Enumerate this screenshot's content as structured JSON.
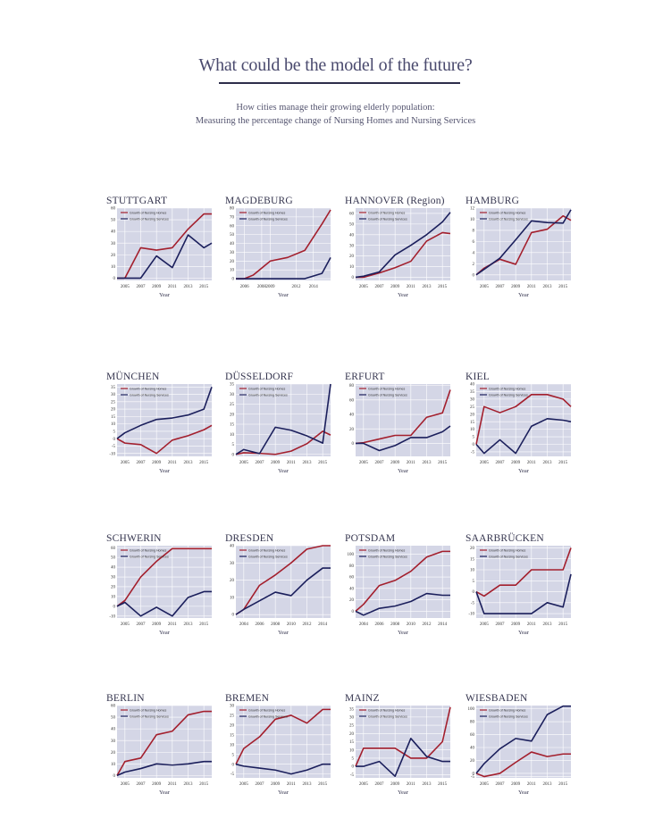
{
  "header": {
    "title": "What could be the model of the future?",
    "subtitle_line1": "How cities manage their growing elderly population:",
    "subtitle_line2": "Measuring the percentage change of Nursing Homes and Nursing Services"
  },
  "colors": {
    "homes": "#a31f2d",
    "services": "#1b1f5c",
    "plot_bg": "#d4d6e6",
    "grid": "#ffffff"
  },
  "chart_data": [
    {
      "type": "line",
      "title": "STUTTGART",
      "xlabel": "Year",
      "ylim": [
        -2,
        60
      ],
      "yticks": [
        0,
        10,
        20,
        30,
        40,
        50,
        60
      ],
      "xticks": [
        "2005",
        "2007",
        "2009",
        "2011",
        "2013",
        "2015"
      ],
      "x": [
        2004,
        2005,
        2007,
        2009,
        2011,
        2013,
        2015,
        2016
      ],
      "series": [
        {
          "name": "Growth of Nursing Homes",
          "values": [
            0,
            0,
            26,
            24,
            26,
            42,
            55,
            55
          ]
        },
        {
          "name": "Growth of Nursing Services",
          "values": [
            0,
            0,
            0,
            19,
            9,
            37,
            26,
            30
          ]
        }
      ]
    },
    {
      "type": "line",
      "title": "MAGDEBURG",
      "xlabel": "Year",
      "ylim": [
        -2,
        80
      ],
      "yticks": [
        0,
        10,
        20,
        30,
        40,
        50,
        60,
        70,
        80
      ],
      "xticks": [
        "2006",
        "2008",
        "2009",
        "2012",
        "2014"
      ],
      "x": [
        2005,
        2006,
        2007,
        2009,
        2011,
        2013,
        2015,
        2016
      ],
      "series": [
        {
          "name": "Growth of Nursing Homes",
          "values": [
            0,
            0,
            4,
            20,
            24,
            32,
            62,
            78
          ]
        },
        {
          "name": "Growth of Nursing Services",
          "values": [
            0,
            0,
            0,
            0,
            0,
            0,
            6,
            24
          ]
        }
      ]
    },
    {
      "type": "line",
      "title": "HANNOVER (Region)",
      "xlabel": "Year",
      "ylim": [
        -3,
        65
      ],
      "yticks": [
        0,
        10,
        20,
        30,
        40,
        50,
        60
      ],
      "xticks": [
        "2005",
        "2007",
        "2009",
        "2011",
        "2013",
        "2015"
      ],
      "x": [
        2004,
        2005,
        2007,
        2009,
        2011,
        2013,
        2015,
        2016
      ],
      "series": [
        {
          "name": "Growth of Nursing Homes",
          "values": [
            0,
            0,
            4,
            9,
            15,
            34,
            42,
            41
          ]
        },
        {
          "name": "Growth of Nursing Services",
          "values": [
            0,
            1,
            5,
            21,
            30,
            40,
            52,
            61
          ]
        }
      ]
    },
    {
      "type": "line",
      "title": "HAMBURG",
      "xlabel": "Year",
      "ylim": [
        -1,
        12
      ],
      "yticks": [
        0,
        2,
        4,
        6,
        8,
        10,
        12
      ],
      "xticks": [
        "2005",
        "2007",
        "2009",
        "2011",
        "2013",
        "2015"
      ],
      "x": [
        2004,
        2005,
        2007,
        2009,
        2011,
        2013,
        2015,
        2016
      ],
      "series": [
        {
          "name": "Growth of Nursing Homes",
          "values": [
            0,
            1.2,
            2.8,
            1.9,
            7.6,
            8.2,
            10.6,
            9.8
          ]
        },
        {
          "name": "Growth of Nursing Services",
          "values": [
            0,
            1.0,
            3.0,
            6.3,
            9.7,
            9.4,
            9.3,
            11.7
          ]
        }
      ]
    },
    {
      "type": "line",
      "title": "MÜNCHEN",
      "xlabel": "Year",
      "ylim": [
        -12,
        37
      ],
      "yticks": [
        -10,
        -5,
        0,
        5,
        10,
        15,
        20,
        25,
        30,
        35
      ],
      "xticks": [
        "2005",
        "2007",
        "2009",
        "2011",
        "2013",
        "2015"
      ],
      "x": [
        2004,
        2005,
        2007,
        2009,
        2011,
        2013,
        2015,
        2016
      ],
      "series": [
        {
          "name": "Growth of Nursing Homes",
          "values": [
            0,
            -3,
            -4,
            -10,
            -1,
            2,
            6,
            9
          ]
        },
        {
          "name": "Growth of Nursing Services",
          "values": [
            0,
            4,
            9,
            13,
            14,
            16,
            20,
            35
          ]
        }
      ]
    },
    {
      "type": "line",
      "title": "DÜSSELDORF",
      "xlabel": "Year",
      "ylim": [
        -1,
        35
      ],
      "yticks": [
        0,
        5,
        10,
        15,
        20,
        25,
        30,
        35
      ],
      "xticks": [
        "2005",
        "2007",
        "2009",
        "2011",
        "2013",
        "2015"
      ],
      "x": [
        2004,
        2005,
        2007,
        2009,
        2011,
        2013,
        2015,
        2016
      ],
      "series": [
        {
          "name": "Growth of Nursing Homes",
          "values": [
            0,
            0.8,
            0.5,
            0,
            1.6,
            5.3,
            11.5,
            9.6
          ]
        },
        {
          "name": "Growth of Nursing Services",
          "values": [
            0,
            2.4,
            0.4,
            13.5,
            12,
            9.2,
            5.6,
            35
          ]
        }
      ]
    },
    {
      "type": "line",
      "title": "ERFURT",
      "xlabel": "Year",
      "ylim": [
        -18,
        82
      ],
      "yticks": [
        0,
        20,
        40,
        60,
        80
      ],
      "xticks": [
        "2005",
        "2007",
        "2009",
        "2011",
        "2013",
        "2015"
      ],
      "x": [
        2004,
        2005,
        2007,
        2009,
        2011,
        2013,
        2015,
        2016
      ],
      "series": [
        {
          "name": "Growth of Nursing Homes",
          "values": [
            0,
            1,
            6,
            11,
            11,
            36,
            42,
            74
          ]
        },
        {
          "name": "Growth of Nursing Services",
          "values": [
            0,
            0,
            -10,
            -3,
            8,
            8,
            16,
            24
          ]
        }
      ]
    },
    {
      "type": "line",
      "title": "KIEL",
      "xlabel": "Year",
      "ylim": [
        -8,
        40
      ],
      "yticks": [
        -5,
        0,
        5,
        10,
        15,
        20,
        25,
        30,
        35,
        40
      ],
      "xticks": [
        "2005",
        "2007",
        "2009",
        "2011",
        "2013",
        "2015"
      ],
      "x": [
        2004,
        2005,
        2007,
        2009,
        2011,
        2013,
        2015,
        2016
      ],
      "series": [
        {
          "name": "Growth of Nursing Homes",
          "values": [
            0,
            25,
            21,
            25,
            33,
            33,
            30,
            25
          ]
        },
        {
          "name": "Growth of Nursing Services",
          "values": [
            0,
            -6,
            3,
            -6,
            12,
            17,
            16,
            15
          ]
        }
      ]
    },
    {
      "type": "line",
      "title": "SCHWERIN",
      "xlabel": "Year",
      "ylim": [
        -12,
        62
      ],
      "yticks": [
        -10,
        0,
        10,
        20,
        30,
        40,
        50,
        60
      ],
      "xticks": [
        "2005",
        "2007",
        "2009",
        "2011",
        "2013",
        "2015"
      ],
      "x": [
        2004,
        2005,
        2007,
        2009,
        2011,
        2013,
        2015,
        2016
      ],
      "series": [
        {
          "name": "Growth of Nursing Homes",
          "values": [
            0,
            6,
            30,
            46,
            59,
            59,
            59,
            59
          ]
        },
        {
          "name": "Growth of Nursing Services",
          "values": [
            0,
            4,
            -10,
            -1,
            -10,
            9,
            15,
            15
          ]
        }
      ]
    },
    {
      "type": "line",
      "title": "DRESDEN",
      "xlabel": "Year",
      "ylim": [
        -2,
        40
      ],
      "yticks": [
        0,
        10,
        20,
        30,
        40
      ],
      "xticks": [
        "2004",
        "2006",
        "2008",
        "2010",
        "2012",
        "2014"
      ],
      "x": [
        2003,
        2004,
        2006,
        2008,
        2010,
        2012,
        2014,
        2015
      ],
      "series": [
        {
          "name": "Growth of Nursing Homes",
          "values": [
            0,
            3,
            17,
            23,
            30,
            38,
            40,
            40
          ]
        },
        {
          "name": "Growth of Nursing Services",
          "values": [
            0,
            3,
            8,
            13,
            11,
            20,
            27,
            27
          ]
        }
      ]
    },
    {
      "type": "line",
      "title": "POTSDAM",
      "xlabel": "Year",
      "ylim": [
        -12,
        115
      ],
      "yticks": [
        0,
        20,
        40,
        60,
        80,
        100
      ],
      "xticks": [
        "2004",
        "2006",
        "2008",
        "2010",
        "2012",
        "2014"
      ],
      "x": [
        2003,
        2004,
        2006,
        2008,
        2010,
        2012,
        2014,
        2015
      ],
      "series": [
        {
          "name": "Growth of Nursing Homes",
          "values": [
            0,
            12,
            45,
            54,
            70,
            95,
            105,
            105
          ]
        },
        {
          "name": "Growth of Nursing Services",
          "values": [
            0,
            -7,
            5,
            9,
            17,
            31,
            28,
            28
          ]
        }
      ]
    },
    {
      "type": "line",
      "title": "SAARBRÜCKEN",
      "xlabel": "Year",
      "ylim": [
        -12,
        21
      ],
      "yticks": [
        -10,
        -5,
        0,
        5,
        10,
        15,
        20
      ],
      "xticks": [
        "2005",
        "2007",
        "2009",
        "2011",
        "2013",
        "2015"
      ],
      "x": [
        2004,
        2005,
        2007,
        2009,
        2011,
        2013,
        2015,
        2016
      ],
      "series": [
        {
          "name": "Growth of Nursing Homes",
          "values": [
            0,
            -2,
            3,
            3,
            10,
            10,
            10,
            20
          ]
        },
        {
          "name": "Growth of Nursing Services",
          "values": [
            0,
            -10,
            -10,
            -10,
            -10,
            -5,
            -7,
            8
          ]
        }
      ]
    },
    {
      "type": "line",
      "title": "BERLIN",
      "xlabel": "Year",
      "ylim": [
        -2,
        60
      ],
      "yticks": [
        0,
        10,
        20,
        30,
        40,
        50,
        60
      ],
      "xticks": [
        "2005",
        "2007",
        "2009",
        "2011",
        "2013",
        "2015"
      ],
      "x": [
        2004,
        2005,
        2007,
        2009,
        2011,
        2013,
        2015,
        2016
      ],
      "series": [
        {
          "name": "Growth of Nursing Homes",
          "values": [
            0,
            12,
            15,
            35,
            38,
            52,
            55,
            55
          ]
        },
        {
          "name": "Growth of Nursing Services",
          "values": [
            0,
            3,
            6,
            10,
            9,
            10,
            12,
            12
          ]
        }
      ]
    },
    {
      "type": "line",
      "title": "BREMEN",
      "xlabel": "Year",
      "ylim": [
        -7,
        30
      ],
      "yticks": [
        -5,
        0,
        5,
        10,
        15,
        20,
        25,
        30
      ],
      "xticks": [
        "2005",
        "2007",
        "2009",
        "2011",
        "2013",
        "2015"
      ],
      "x": [
        2004,
        2005,
        2007,
        2009,
        2011,
        2013,
        2015,
        2016
      ],
      "series": [
        {
          "name": "Growth of Nursing Homes",
          "values": [
            0,
            8,
            14,
            23,
            25,
            21,
            28,
            28
          ]
        },
        {
          "name": "Growth of Nursing Services",
          "values": [
            0,
            -1,
            -2,
            -3,
            -5,
            -3,
            0,
            0
          ]
        }
      ]
    },
    {
      "type": "line",
      "title": "MAINZ",
      "xlabel": "Year",
      "ylim": [
        -7,
        37
      ],
      "yticks": [
        -5,
        0,
        5,
        10,
        15,
        20,
        25,
        30,
        35
      ],
      "xticks": [
        "2005",
        "2007",
        "2009",
        "2011",
        "2013",
        "2015"
      ],
      "x": [
        2004,
        2005,
        2007,
        2009,
        2011,
        2013,
        2015,
        2016
      ],
      "series": [
        {
          "name": "Growth of Nursing Homes",
          "values": [
            0,
            11,
            11,
            11,
            5,
            5,
            15,
            36
          ]
        },
        {
          "name": "Growth of Nursing Services",
          "values": [
            0,
            0,
            3,
            -6,
            17,
            6,
            3,
            3
          ]
        }
      ]
    },
    {
      "type": "line",
      "title": "WIESBADEN",
      "xlabel": "Year",
      "ylim": [
        -7,
        105
      ],
      "yticks": [
        -5,
        0,
        20,
        40,
        60,
        80,
        100
      ],
      "xticks": [
        "2005",
        "2007",
        "2009",
        "2011",
        "2013",
        "2015"
      ],
      "x": [
        2004,
        2005,
        2007,
        2009,
        2011,
        2013,
        2015,
        2016
      ],
      "series": [
        {
          "name": "Growth of Nursing Homes",
          "values": [
            0,
            -5,
            0,
            17,
            33,
            26,
            30,
            30
          ]
        },
        {
          "name": "Growth of Nursing Services",
          "values": [
            0,
            15,
            38,
            54,
            50,
            91,
            104,
            104
          ]
        }
      ]
    }
  ]
}
